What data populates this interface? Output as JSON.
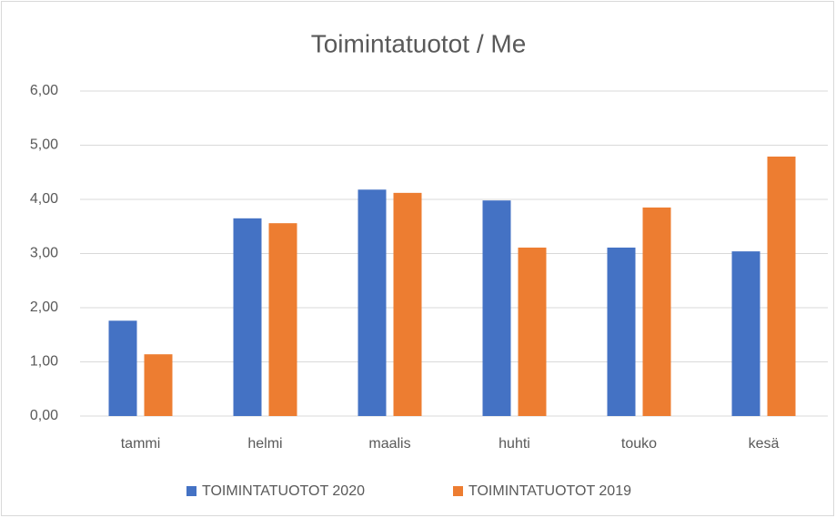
{
  "chart_data": {
    "type": "bar",
    "title": "Toimintatuotot / Me",
    "categories": [
      "tammi",
      "helmi",
      "maalis",
      "huhti",
      "touko",
      "kesä"
    ],
    "series": [
      {
        "name": "TOIMINTATUOTOT 2020",
        "color": "#4472c4",
        "values": [
          1.76,
          3.65,
          4.18,
          3.98,
          3.11,
          3.04
        ]
      },
      {
        "name": "TOIMINTATUOTOT 2019",
        "color": "#ed7d31",
        "values": [
          1.14,
          3.56,
          4.12,
          3.11,
          3.85,
          4.79
        ]
      }
    ],
    "ylim": [
      0,
      6
    ],
    "yticks": [
      {
        "value": 0,
        "label": "0,00"
      },
      {
        "value": 1,
        "label": "1,00"
      },
      {
        "value": 2,
        "label": "2,00"
      },
      {
        "value": 3,
        "label": "3,00"
      },
      {
        "value": 4,
        "label": "4,00"
      },
      {
        "value": 5,
        "label": "5,00"
      },
      {
        "value": 6,
        "label": "6,00"
      }
    ],
    "grid": true,
    "legend": "bottom"
  }
}
